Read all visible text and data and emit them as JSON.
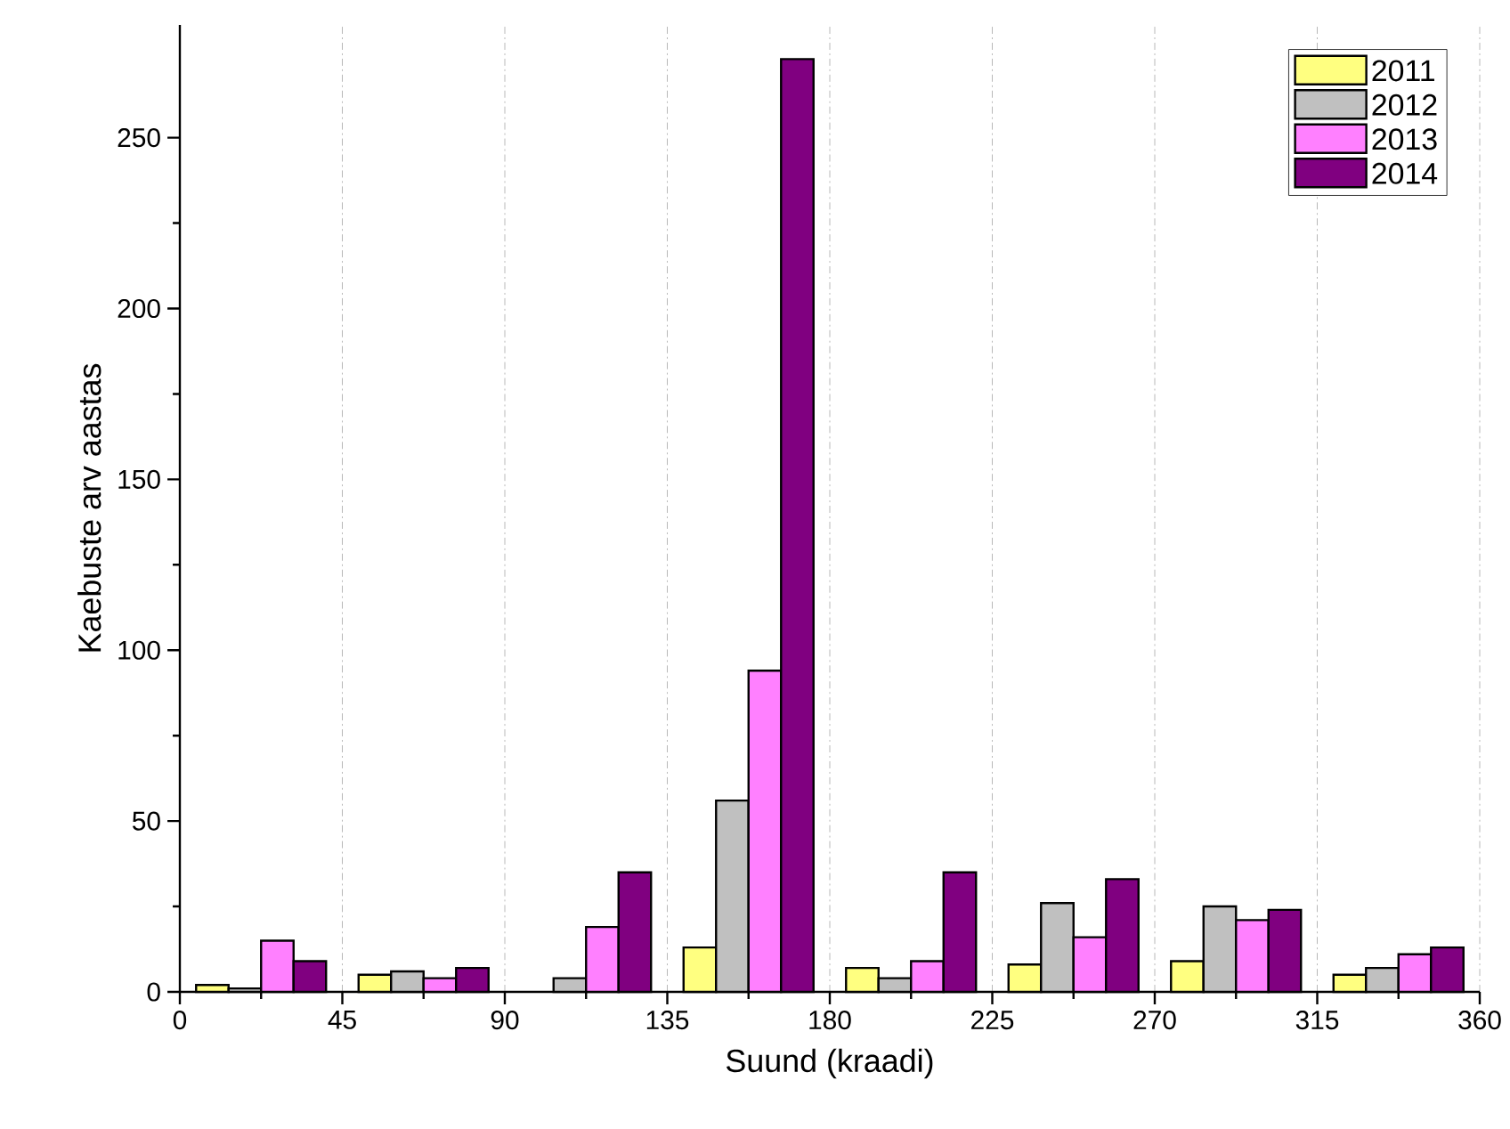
{
  "chart_data": {
    "type": "bar",
    "xlabel": "Suund (kraadi)",
    "ylabel": "Kaebuste arv aastas",
    "xlim": [
      0,
      360
    ],
    "xticks": [
      0,
      45,
      90,
      135,
      180,
      225,
      270,
      315,
      360
    ],
    "ylim": [
      0,
      283
    ],
    "yticks": [
      0,
      50,
      100,
      150,
      200,
      250
    ],
    "grid": "x",
    "legend": "top right",
    "series": [
      {
        "name": "2011",
        "color": "#ffff80",
        "x": [
          9,
          54,
          99,
          144,
          189,
          234,
          279,
          324
        ],
        "values": [
          2,
          5,
          null,
          13,
          7,
          8,
          9,
          5
        ]
      },
      {
        "name": "2012",
        "color": "#c0c0c0",
        "x": [
          18,
          63,
          108,
          153,
          198,
          243,
          288,
          333
        ],
        "values": [
          1,
          6,
          4,
          56,
          4,
          26,
          25,
          7
        ]
      },
      {
        "name": "2013",
        "color": "#ff80ff",
        "x": [
          27,
          72,
          117,
          162,
          207,
          252,
          297,
          342
        ],
        "values": [
          15,
          4,
          19,
          94,
          9,
          16,
          21,
          11
        ]
      },
      {
        "name": "2014",
        "color": "#800080",
        "x": [
          36,
          81,
          126,
          171,
          216,
          261,
          306,
          351
        ],
        "values": [
          9,
          7,
          35,
          273,
          35,
          33,
          24,
          13
        ]
      }
    ]
  }
}
